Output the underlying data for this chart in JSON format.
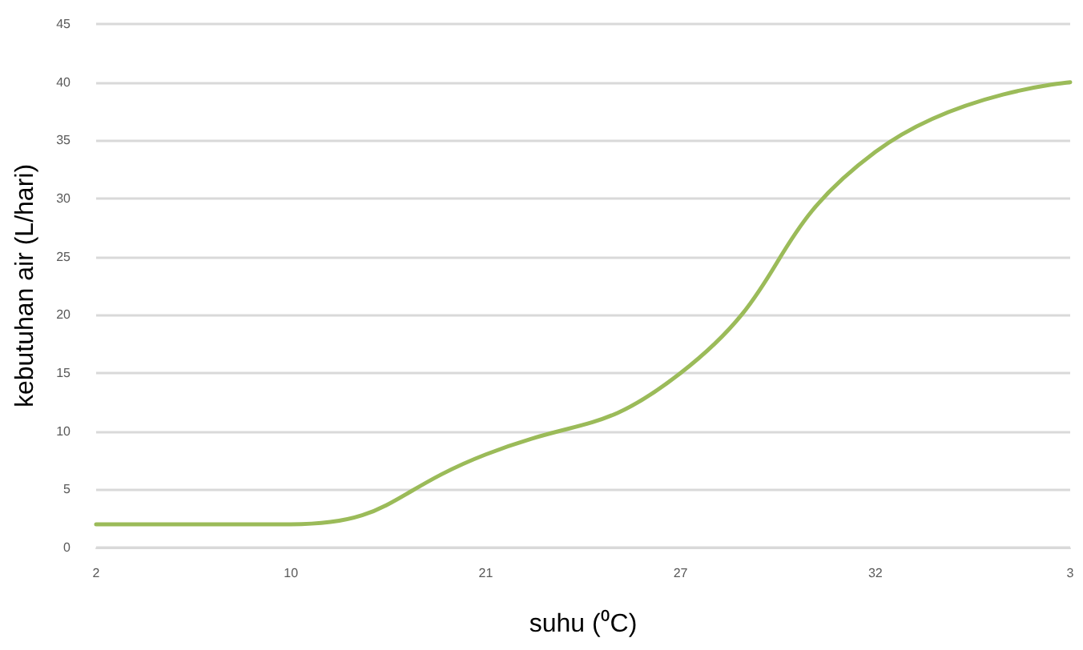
{
  "chart_data": {
    "type": "line",
    "xlabel": "suhu (⁰C)",
    "ylabel": "kebutuhan air (L/hari)",
    "categories": [
      "2",
      "10",
      "21",
      "27",
      "32",
      "3"
    ],
    "series": [
      {
        "color": "#9bbb59",
        "values": [
          2,
          2,
          8,
          15,
          34,
          40
        ]
      }
    ],
    "ylim": [
      0,
      45
    ],
    "yticks": [
      0,
      5,
      10,
      15,
      20,
      25,
      30,
      35,
      40,
      45
    ],
    "grid": "y",
    "marker": "none",
    "line_style": "solid"
  }
}
